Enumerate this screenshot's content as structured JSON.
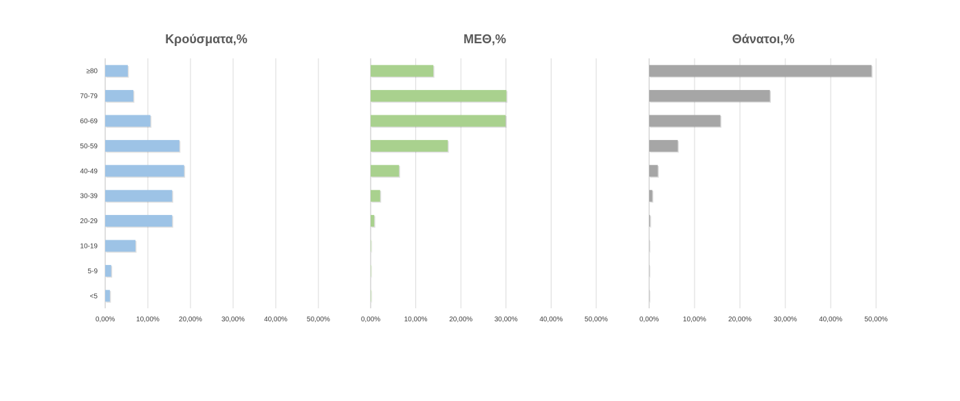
{
  "chart_data": [
    {
      "type": "bar",
      "orientation": "horizontal",
      "title": "Κρούσματα,%",
      "categories": [
        "≥80",
        "70-79",
        "60-69",
        "50-59",
        "40-49",
        "30-39",
        "20-29",
        "10-19",
        "5-9",
        "<5"
      ],
      "values": [
        5.3,
        6.6,
        10.6,
        17.4,
        18.5,
        15.7,
        15.7,
        7.1,
        1.4,
        1.1
      ],
      "xlim": [
        0,
        50
      ],
      "xticks": [
        "0,00%",
        "10,00%",
        "20,00%",
        "30,00%",
        "40,00%",
        "50,00%"
      ],
      "color": "#9dc3e6",
      "grid": true
    },
    {
      "type": "bar",
      "orientation": "horizontal",
      "title": "ΜΕΘ,%",
      "categories": [
        "≥80",
        "70-79",
        "60-69",
        "50-59",
        "40-49",
        "30-39",
        "20-29",
        "10-19",
        "5-9",
        "<5"
      ],
      "values": [
        13.9,
        30.1,
        29.9,
        17.1,
        6.3,
        2.1,
        0.8,
        0.1,
        0.0,
        0.1
      ],
      "xlim": [
        0,
        50
      ],
      "xticks": [
        "0,00%",
        "10,00%",
        "20,00%",
        "30,00%",
        "40,00%",
        "50,00%"
      ],
      "color": "#a9d18e",
      "grid": true
    },
    {
      "type": "bar",
      "orientation": "horizontal",
      "title": "Θάνατοι,%",
      "categories": [
        "≥80",
        "70-79",
        "60-69",
        "50-59",
        "40-49",
        "30-39",
        "20-29",
        "10-19",
        "5-9",
        "<5"
      ],
      "values": [
        49.0,
        26.6,
        15.7,
        6.3,
        1.9,
        0.7,
        0.2,
        0.0,
        0.0,
        0.0
      ],
      "xlim": [
        0,
        50
      ],
      "xticks": [
        "0,00%",
        "10,00%",
        "20,00%",
        "30,00%",
        "40,00%",
        "50,00%"
      ],
      "color": "#a6a6a6",
      "grid": true
    }
  ]
}
